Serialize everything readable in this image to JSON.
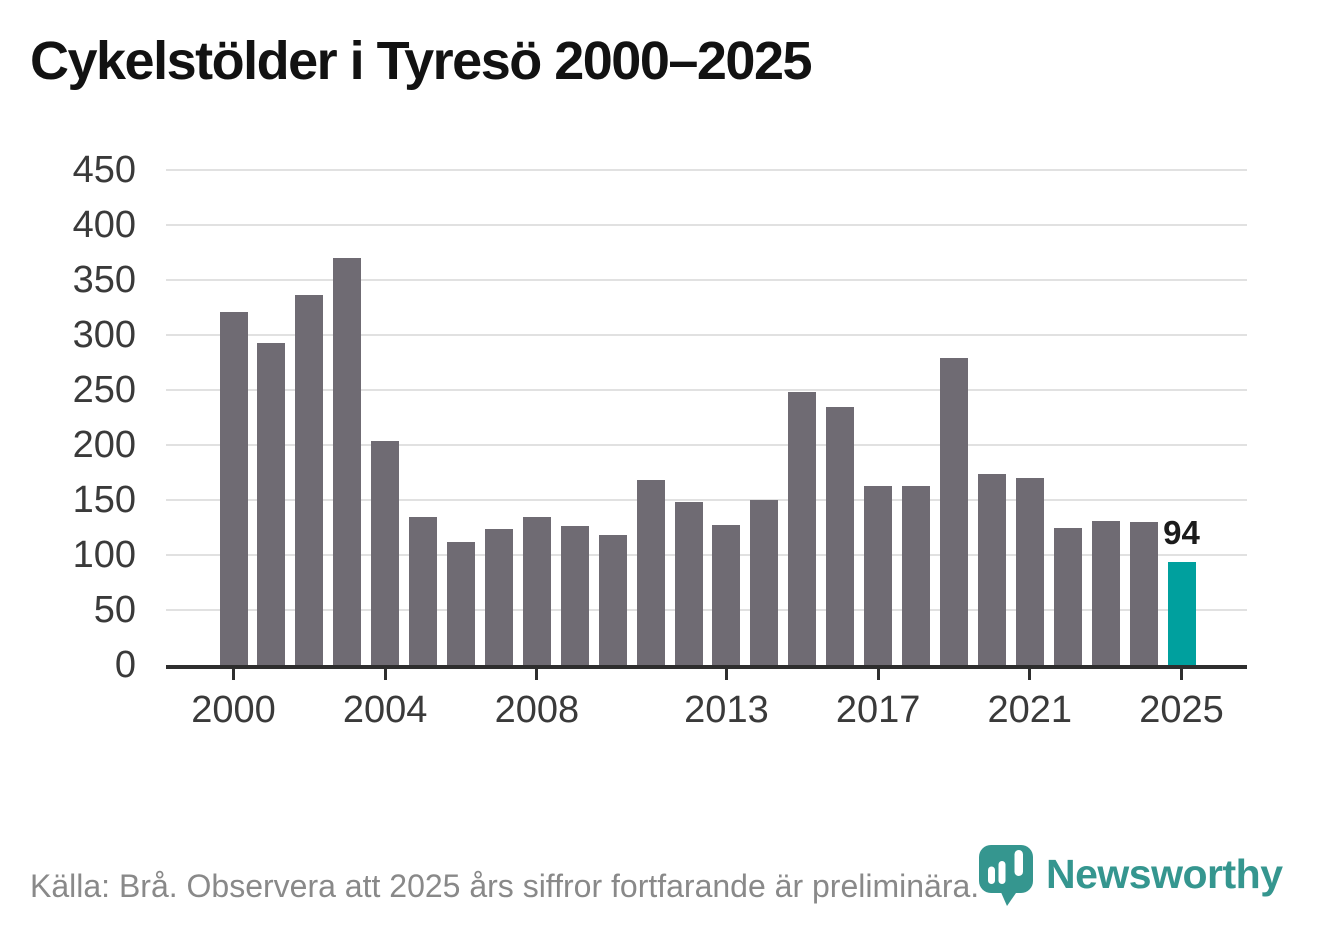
{
  "title": "Cykelstölder i Tyresö 2000–2025",
  "footer": {
    "source_note": "Källa: Brå. Observera att 2025 års siffror fortfarande är preliminära."
  },
  "branding": {
    "logo_text": "Newsworthy",
    "logo_color": "#35968f"
  },
  "chart_data": {
    "type": "bar",
    "title": "Cykelstölder i Tyresö 2000–2025",
    "categories": [
      2000,
      2001,
      2002,
      2003,
      2004,
      2005,
      2006,
      2007,
      2008,
      2009,
      2010,
      2011,
      2012,
      2013,
      2014,
      2015,
      2016,
      2017,
      2018,
      2019,
      2020,
      2021,
      2022,
      2023,
      2024,
      2025
    ],
    "values": [
      321,
      293,
      336,
      370,
      204,
      135,
      112,
      124,
      135,
      126,
      118,
      168,
      148,
      127,
      150,
      248,
      235,
      163,
      163,
      279,
      174,
      170,
      125,
      131,
      130,
      94
    ],
    "highlight_category": 2025,
    "data_label": {
      "category": 2025,
      "text": "94"
    },
    "xlabel": "",
    "ylabel": "",
    "ylim": [
      0,
      450
    ],
    "yticks": [
      0,
      50,
      100,
      150,
      200,
      250,
      300,
      350,
      400,
      450
    ],
    "xticks": [
      2000,
      2004,
      2008,
      2013,
      2017,
      2021,
      2025
    ],
    "grid": "horizontal",
    "legend": "none",
    "colors": {
      "bar": "#6f6b73",
      "highlight": "#00a09e",
      "grid": "#e1e1e1",
      "axis": "#2e2e2e",
      "tick_label": "#3a3a3a"
    }
  }
}
